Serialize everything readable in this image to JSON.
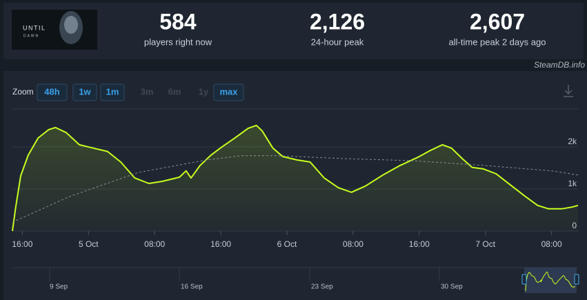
{
  "header": {
    "logo_text": [
      "UNTIL",
      "DAWN"
    ],
    "stats": [
      {
        "value": "584",
        "label": "players right now"
      },
      {
        "value": "2,126",
        "label": "24-hour peak"
      },
      {
        "value": "2,607",
        "label": "all-time peak 2 days ago"
      }
    ],
    "source": "SteamDB.info"
  },
  "zoom": {
    "label": "Zoom",
    "buttons": [
      {
        "label": "48h",
        "enabled": true
      },
      {
        "label": "1w",
        "enabled": true
      },
      {
        "label": "1m",
        "enabled": true
      },
      {
        "label": "3m",
        "enabled": false
      },
      {
        "label": "6m",
        "enabled": false
      },
      {
        "label": "1y",
        "enabled": false
      },
      {
        "label": "max",
        "enabled": true
      }
    ]
  },
  "chart_data": {
    "type": "line",
    "xlim": [
      14.8,
      83.2
    ],
    "xticks": [
      {
        "value": 16,
        "label": "16:00"
      },
      {
        "value": 24,
        "label": "5 Oct"
      },
      {
        "value": 32,
        "label": "08:00"
      },
      {
        "value": 40,
        "label": "16:00"
      },
      {
        "value": 48,
        "label": "6 Oct"
      },
      {
        "value": 56,
        "label": "08:00"
      },
      {
        "value": 64,
        "label": "16:00"
      },
      {
        "value": 72,
        "label": "7 Oct"
      },
      {
        "value": 80,
        "label": "08:00"
      }
    ],
    "ylim": [
      0,
      2900
    ],
    "yticks": [
      0,
      {
        "value": 1000,
        "label": "1k"
      },
      {
        "value": 2000,
        "label": "2k"
      }
    ],
    "grid": true,
    "series": [
      {
        "color": "#c8ff1e",
        "style": "solid",
        "fill": true,
        "x": [
          14.8,
          15.2,
          15.8,
          16.7,
          17.9,
          19.2,
          20,
          21.3,
          22.9,
          24.6,
          26.3,
          27.9,
          29.6,
          31.3,
          32.9,
          35,
          35.8,
          36.4,
          37.5,
          38.8,
          40,
          41.7,
          43.3,
          44.3,
          45,
          46.3,
          47.5,
          49.2,
          50.8,
          52.5,
          54.2,
          55.8,
          57.5,
          59.6,
          61.7,
          63.8,
          65.4,
          66.8,
          67.9,
          69.2,
          70.4,
          71.7,
          73.3,
          75,
          76.7,
          78.3,
          79.6,
          81.3,
          82.5,
          83.2
        ],
        "values": [
          0,
          570,
          1310,
          1800,
          2210,
          2410,
          2460,
          2340,
          2050,
          1970,
          1890,
          1640,
          1260,
          1130,
          1180,
          1280,
          1430,
          1260,
          1560,
          1800,
          1980,
          2210,
          2440,
          2510,
          2380,
          1970,
          1770,
          1690,
          1640,
          1260,
          1030,
          920,
          1070,
          1330,
          1560,
          1750,
          1920,
          2050,
          1970,
          1720,
          1510,
          1480,
          1360,
          1100,
          840,
          610,
          530,
          530,
          570,
          610
        ]
      },
      {
        "color": "#8a8f96",
        "style": "dashed",
        "fill": false,
        "x": [
          14.8,
          21.7,
          30,
          38.3,
          42.5,
          46.7,
          55,
          63.3,
          71.7,
          80,
          83.2
        ],
        "values": [
          210,
          820,
          1390,
          1690,
          1790,
          1790,
          1720,
          1670,
          1560,
          1430,
          1330
        ]
      }
    ]
  },
  "navigator": {
    "labels": [
      "9 Sep",
      "16 Sep",
      "23 Sep",
      "30 Sep"
    ]
  }
}
